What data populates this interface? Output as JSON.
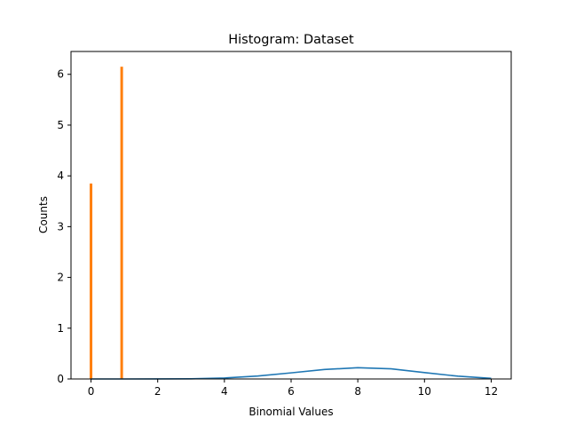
{
  "chart_data": {
    "type": "bar",
    "title": "Histogram: Dataset",
    "xlabel": "Binomial Values",
    "ylabel": "Counts",
    "xlim": [
      -0.6,
      12.6
    ],
    "ylim": [
      0,
      6.45
    ],
    "xticks": [
      0,
      2,
      4,
      6,
      8,
      10,
      12
    ],
    "yticks": [
      0,
      1,
      2,
      3,
      4,
      5,
      6
    ],
    "grid": false,
    "bars": {
      "color": "#ff7f0e",
      "x": [
        0,
        0.92
      ],
      "values": [
        3.85,
        6.15
      ],
      "width": 0.08
    },
    "line": {
      "color": "#1f77b4",
      "x": [
        0,
        1,
        2,
        3,
        4,
        5,
        6,
        7,
        8,
        9,
        10,
        11,
        12
      ],
      "y": [
        0.0,
        0.0,
        0.0005,
        0.004,
        0.019,
        0.058,
        0.12,
        0.186,
        0.222,
        0.2,
        0.125,
        0.055,
        0.012
      ]
    }
  }
}
